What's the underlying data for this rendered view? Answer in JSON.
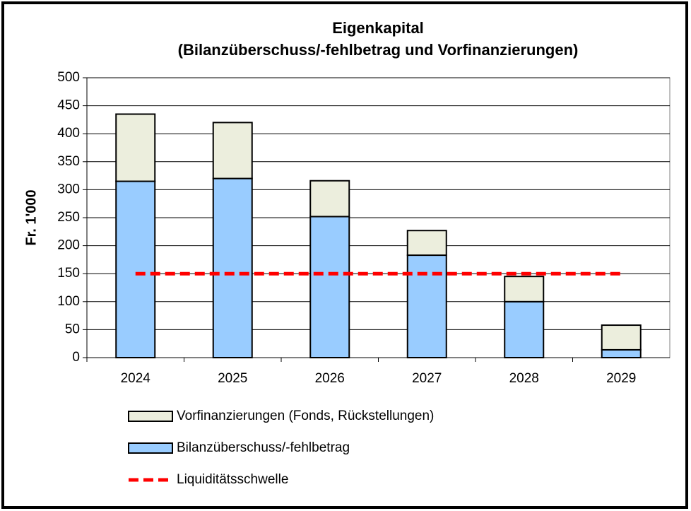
{
  "chart_data": {
    "type": "bar",
    "stacked": true,
    "title": [
      "Eigenkapital",
      "(Bilanzüberschuss/-fehlbetrag und Vorfinanzierungen)"
    ],
    "y_label": "Fr. 1'000",
    "categories": [
      "2024",
      "2025",
      "2026",
      "2027",
      "2028",
      "2029"
    ],
    "series": [
      {
        "name": "Vorfinanzierungen (Fonds, Rückstellungen)",
        "type": "bar",
        "color": "#eceedd",
        "values": [
          120,
          100,
          64,
          44,
          45,
          44
        ]
      },
      {
        "name": "Bilanzüberschuss/-fehlbetrag",
        "type": "bar",
        "color": "#99ccff",
        "values": [
          315,
          320,
          252,
          183,
          100,
          14
        ]
      },
      {
        "name": "Liquiditätsschwelle",
        "type": "line",
        "color": "#ff0000",
        "values": [
          150,
          150,
          150,
          150,
          150,
          150
        ]
      }
    ],
    "ylim": [
      0,
      500
    ],
    "yticks": [
      0,
      50,
      100,
      150,
      200,
      250,
      300,
      350,
      400,
      450,
      500
    ],
    "grid": true
  }
}
